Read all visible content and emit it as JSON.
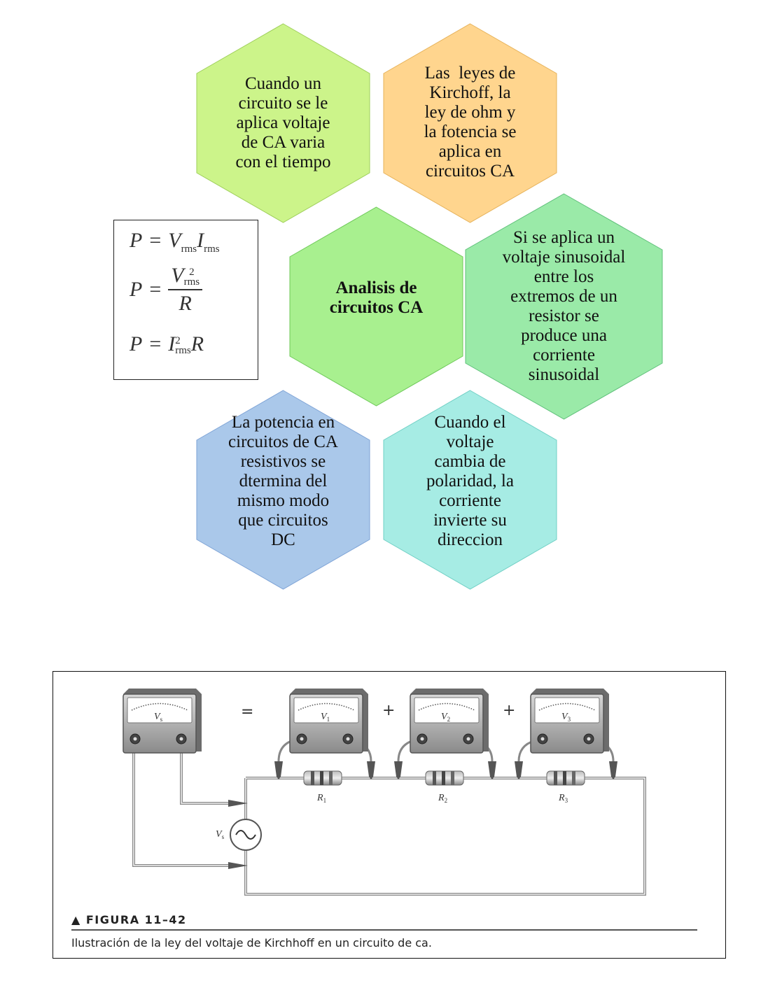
{
  "hexagons": {
    "top_left": {
      "lines": [
        "Cuando un",
        "circuito se le",
        "aplica voltaje",
        "de CA varia",
        "con el tiempo"
      ],
      "color": "#ccf48a"
    },
    "top_right": {
      "lines": [
        "Las  leyes de",
        "Kirchoff, la",
        "ley de ohm y",
        "la fotencia se",
        "aplica en",
        "circuitos CA"
      ],
      "color": "#ffd58e"
    },
    "center": {
      "lines": [
        "Analisis de",
        "circuitos CA"
      ],
      "color": "#a8f08f"
    },
    "right": {
      "lines": [
        "Si se aplica un",
        "voltaje sinusoidal",
        "entre los",
        "extremos de un",
        "resistor se",
        "produce una",
        "corriente",
        "sinusoidal"
      ],
      "color": "#9aeaa8"
    },
    "bottom_left": {
      "lines": [
        "La potencia en",
        "circuitos de CA",
        "resistivos se",
        "dtermina del",
        "mismo modo",
        "que circuitos",
        "DC"
      ],
      "color": "#aac8ea"
    },
    "bottom_right": {
      "lines": [
        "Cuando el",
        "voltaje",
        "cambia de",
        "polaridad, la",
        "corriente",
        "invierte su",
        "direccion"
      ],
      "color": "#a6ece4"
    }
  },
  "formulas": {
    "f1": {
      "lhs": "P",
      "eq": "=",
      "v": "V",
      "v_sub": "rms",
      "i": "I",
      "i_sub": "rms"
    },
    "f2": {
      "lhs": "P",
      "eq": "=",
      "num": "V",
      "num_sup": "2",
      "num_sub": "rms",
      "den": "R"
    },
    "f3": {
      "lhs": "P",
      "eq": "=",
      "i": "I",
      "i_sup": "2",
      "i_sub": "rms",
      "r": "R"
    }
  },
  "figure": {
    "meters": [
      "V",
      "V",
      "V",
      "V"
    ],
    "meter_subs": [
      "s",
      "1",
      "2",
      "3"
    ],
    "operators": [
      "=",
      "+",
      "+"
    ],
    "resistors": [
      "R",
      "R",
      "R"
    ],
    "resistor_subs": [
      "1",
      "2",
      "3"
    ],
    "source_label": "V",
    "source_sub": "s",
    "title": "▲ FIGURA 11–42",
    "caption": "Ilustración de la ley del voltaje de Kirchhoff en un circuito de ca."
  }
}
